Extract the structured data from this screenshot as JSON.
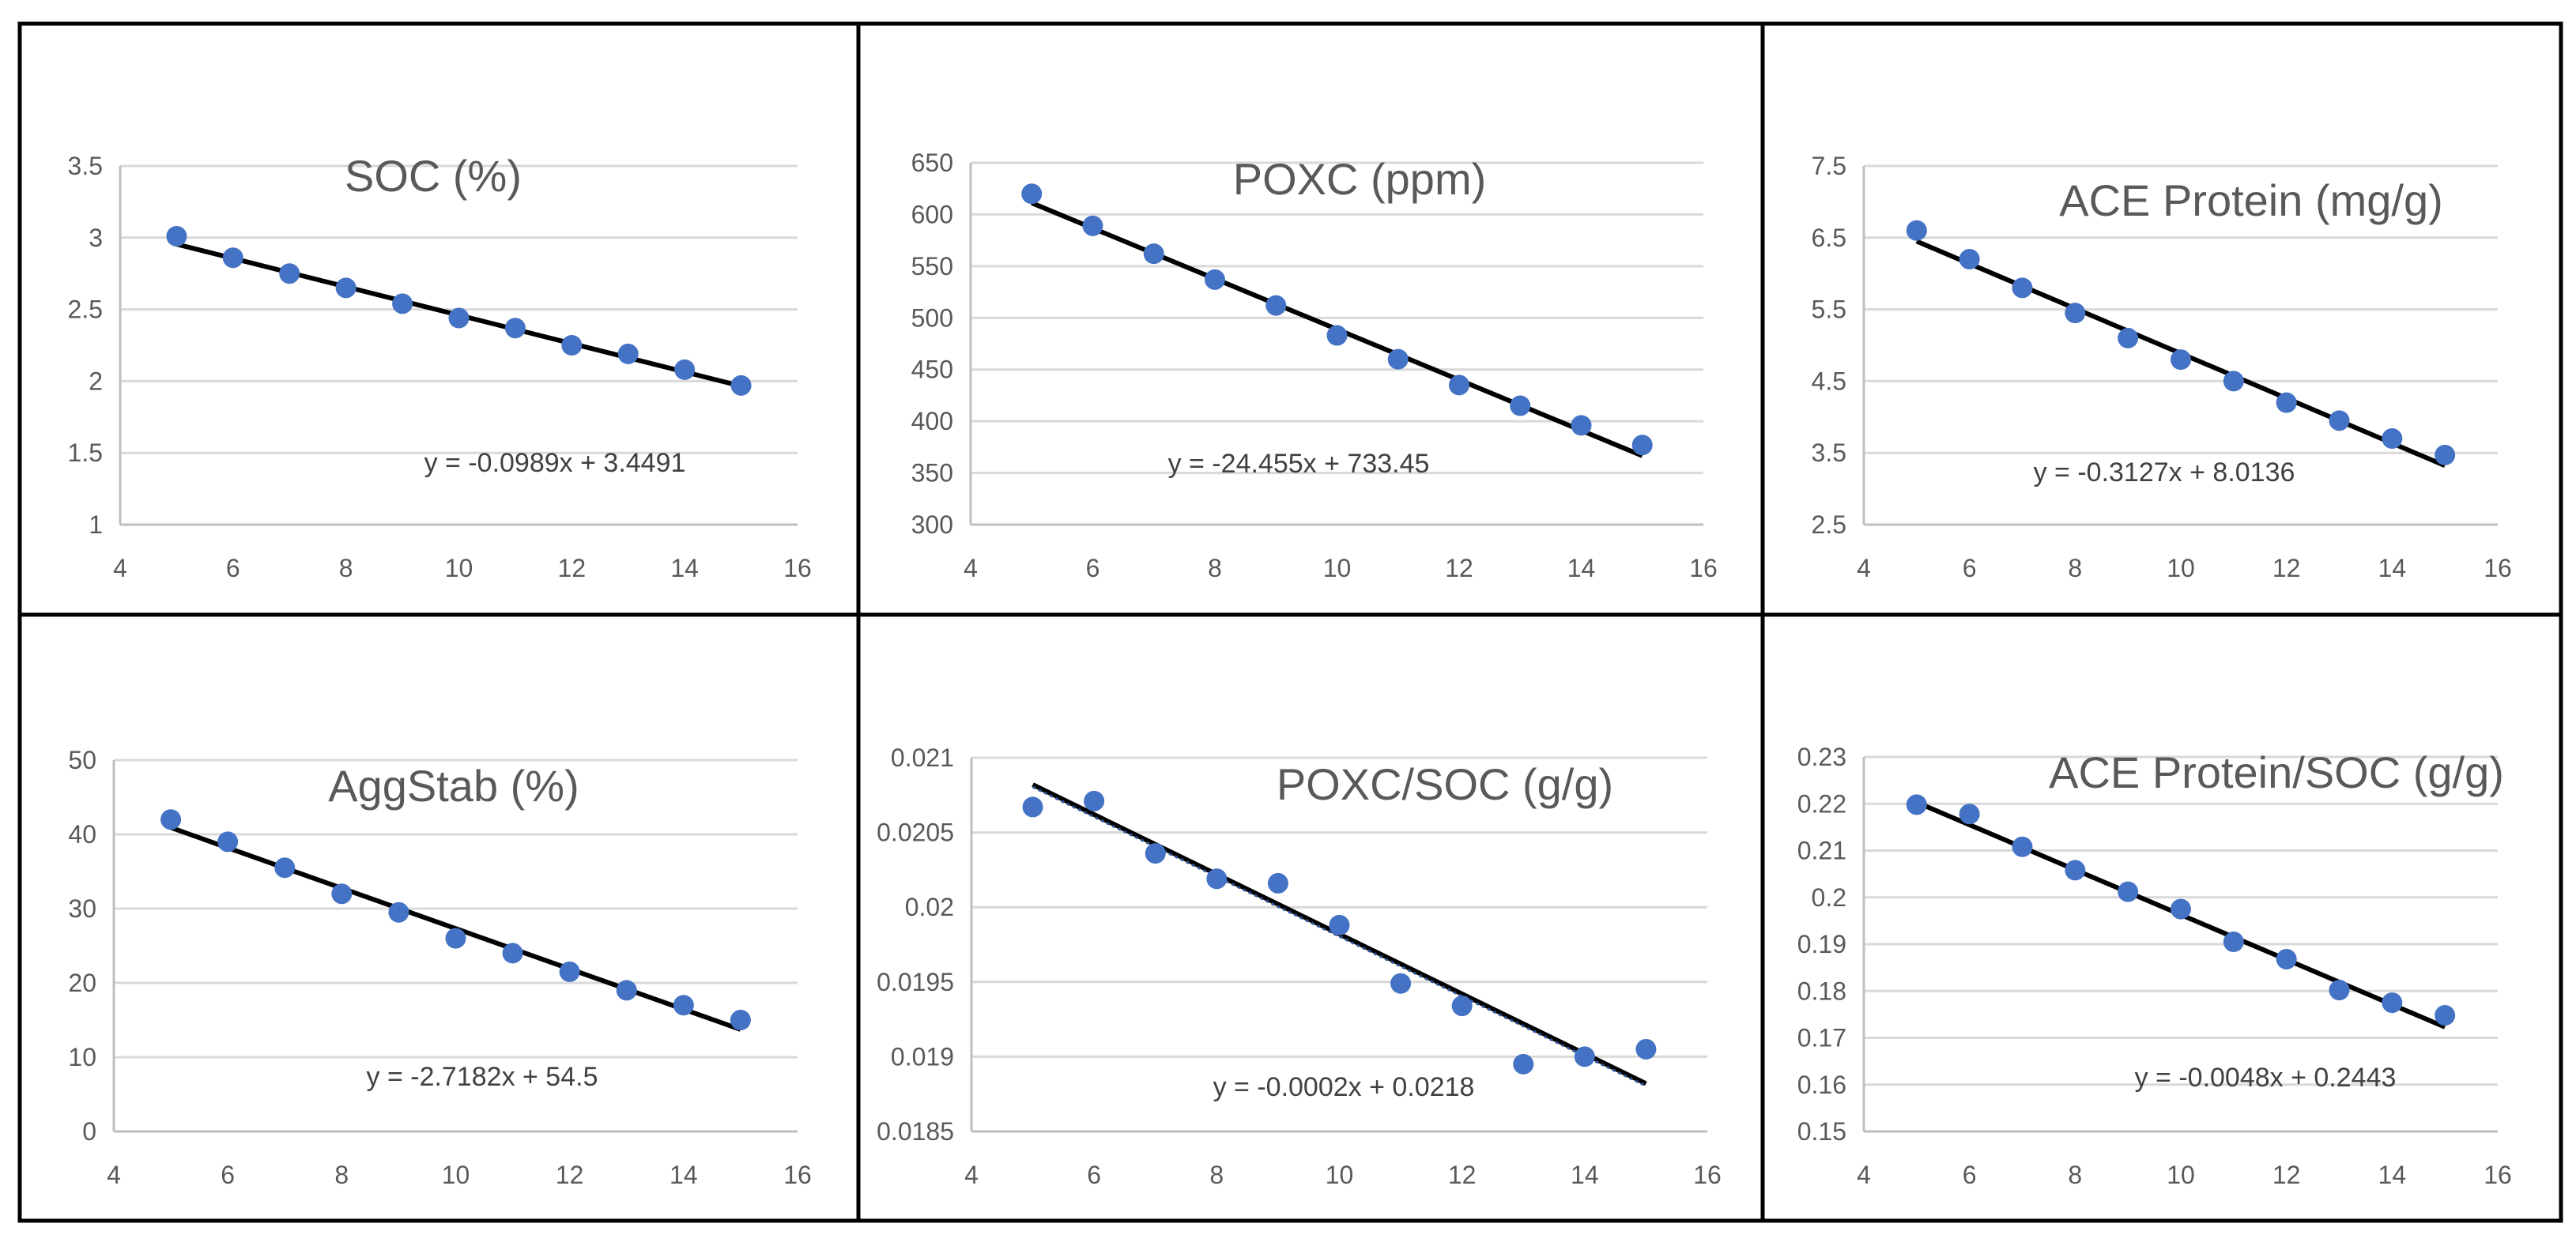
{
  "colors": {
    "marker": "#4472c4",
    "trendline": "#000000",
    "dotted_trendline": "#2f5597",
    "axis_text": "#595959"
  },
  "chart_data": [
    {
      "type": "scatter",
      "title": "SOC (%)",
      "x": [
        5,
        6,
        7,
        8,
        9,
        10,
        11,
        12,
        13,
        14,
        15
      ],
      "series": [
        {
          "name": "SOC (%)",
          "values": [
            3.01,
            2.86,
            2.75,
            2.65,
            2.54,
            2.44,
            2.37,
            2.25,
            2.19,
            2.08,
            1.97
          ]
        }
      ],
      "xlim": [
        4,
        16
      ],
      "xticks": [
        4,
        6,
        8,
        10,
        12,
        14,
        16
      ],
      "ylim": [
        1,
        3.5
      ],
      "yticks": [
        1,
        1.5,
        2,
        2.5,
        3,
        3.5
      ],
      "ytick_labels": [
        "1",
        "1.5",
        "2",
        "2.5",
        "3",
        "3.5"
      ],
      "trendline": {
        "slope": -0.0989,
        "intercept": 3.4491,
        "dotted": false
      },
      "equation": "y = -0.0989x + 3.4491",
      "grid": true
    },
    {
      "type": "scatter",
      "title": "POXC (ppm)",
      "x": [
        5,
        6,
        7,
        8,
        9,
        10,
        11,
        12,
        13,
        14,
        15
      ],
      "series": [
        {
          "name": "POXC (ppm)",
          "values": [
            620,
            589,
            562,
            537,
            512,
            483,
            460,
            435,
            415,
            396,
            377
          ]
        }
      ],
      "xlim": [
        4,
        16
      ],
      "xticks": [
        4,
        6,
        8,
        10,
        12,
        14,
        16
      ],
      "ylim": [
        300,
        650
      ],
      "yticks": [
        300,
        350,
        400,
        450,
        500,
        550,
        600,
        650
      ],
      "ytick_labels": [
        "300",
        "350",
        "400",
        "450",
        "500",
        "550",
        "600",
        "650"
      ],
      "trendline": {
        "slope": -24.455,
        "intercept": 733.45,
        "dotted": false
      },
      "equation": "y = -24.455x + 733.45",
      "grid": true
    },
    {
      "type": "scatter",
      "title": "ACE Protein (mg/g)",
      "x": [
        5,
        6,
        7,
        8,
        9,
        10,
        11,
        12,
        13,
        14,
        15
      ],
      "series": [
        {
          "name": "ACE Protein (mg/g)",
          "values": [
            6.6,
            6.2,
            5.8,
            5.45,
            5.1,
            4.8,
            4.5,
            4.2,
            3.95,
            3.7,
            3.47
          ]
        }
      ],
      "xlim": [
        4,
        16
      ],
      "xticks": [
        4,
        6,
        8,
        10,
        12,
        14,
        16
      ],
      "ylim": [
        2.5,
        7.5
      ],
      "yticks": [
        2.5,
        3.5,
        4.5,
        5.5,
        6.5,
        7.5
      ],
      "ytick_labels": [
        "2.5",
        "3.5",
        "4.5",
        "5.5",
        "6.5",
        "7.5"
      ],
      "trendline": {
        "slope": -0.3127,
        "intercept": 8.0136,
        "dotted": false
      },
      "equation": "y = -0.3127x + 8.0136",
      "grid": true
    },
    {
      "type": "scatter",
      "title": "AggStab (%)",
      "x": [
        5,
        6,
        7,
        8,
        9,
        10,
        11,
        12,
        13,
        14,
        15
      ],
      "series": [
        {
          "name": "AggStab (%)",
          "values": [
            42,
            39,
            35.5,
            32,
            29.5,
            26,
            24,
            21.5,
            19,
            17,
            15
          ]
        }
      ],
      "xlim": [
        4,
        16
      ],
      "xticks": [
        4,
        6,
        8,
        10,
        12,
        14,
        16
      ],
      "ylim": [
        0,
        50
      ],
      "yticks": [
        0,
        10,
        20,
        30,
        40,
        50
      ],
      "ytick_labels": [
        "0",
        "10",
        "20",
        "30",
        "40",
        "50"
      ],
      "trendline": {
        "slope": -2.7182,
        "intercept": 54.5,
        "dotted": false
      },
      "equation": "y = -2.7182x + 54.5",
      "grid": true
    },
    {
      "type": "scatter",
      "title": "POXC/SOC (g/g)",
      "x": [
        5,
        6,
        7,
        8,
        9,
        10,
        11,
        12,
        13,
        14,
        15
      ],
      "series": [
        {
          "name": "POXC/SOC (g/g)",
          "values": [
            0.02067,
            0.02071,
            0.02036,
            0.02019,
            0.02016,
            0.01988,
            0.01949,
            0.01934,
            0.01895,
            0.019,
            0.01905
          ]
        }
      ],
      "xlim": [
        4,
        16
      ],
      "xticks": [
        4,
        6,
        8,
        10,
        12,
        14,
        16
      ],
      "ylim": [
        0.0185,
        0.021
      ],
      "yticks": [
        0.0185,
        0.019,
        0.0195,
        0.02,
        0.0205,
        0.021
      ],
      "ytick_labels": [
        "0.0185",
        "0.019",
        "0.0195",
        "0.02",
        "0.0205",
        "0.021"
      ],
      "trendline": {
        "start": [
          5,
          0.02082
        ],
        "end": [
          15,
          0.01882
        ],
        "dotted": true
      },
      "equation": "y = -0.0002x + 0.0218",
      "grid": true
    },
    {
      "type": "scatter",
      "title": "ACE Protein/SOC (g/g)",
      "x": [
        5,
        6,
        7,
        8,
        9,
        10,
        11,
        12,
        13,
        14,
        15
      ],
      "series": [
        {
          "name": "ACE Protein/SOC (g/g)",
          "values": [
            0.2198,
            0.2178,
            0.2108,
            0.2058,
            0.2012,
            0.1975,
            0.1905,
            0.1868,
            0.1802,
            0.1775,
            0.1748
          ]
        }
      ],
      "xlim": [
        4,
        16
      ],
      "xticks": [
        4,
        6,
        8,
        10,
        12,
        14,
        16
      ],
      "ylim": [
        0.15,
        0.23
      ],
      "yticks": [
        0.15,
        0.16,
        0.17,
        0.18,
        0.19,
        0.2,
        0.21,
        0.22,
        0.23
      ],
      "ytick_labels": [
        "0.15",
        "0.16",
        "0.17",
        "0.18",
        "0.19",
        "0.2",
        "0.21",
        "0.22",
        "0.23"
      ],
      "trendline": {
        "slope": -0.0048,
        "intercept": 0.2443,
        "dotted": false
      },
      "equation": "y = -0.0048x + 0.2443",
      "grid": true
    }
  ]
}
